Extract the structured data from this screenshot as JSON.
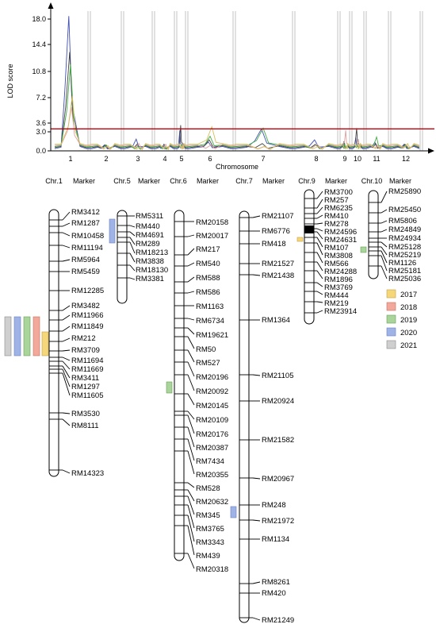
{
  "lod_plot": {
    "ylabel": "LOD score",
    "xlabel": "Chromosome",
    "y_ticks": [
      "0.0",
      "3.0",
      "3.6",
      "7.2",
      "10.8",
      "14.4",
      "18.0"
    ],
    "x_ticks": [
      "1",
      "2",
      "3",
      "4",
      "5",
      "6",
      "7",
      "8",
      "9",
      "10",
      "11",
      "12"
    ]
  },
  "chart_data": {
    "type": "line",
    "title": "",
    "xlabel": "Chromosome",
    "ylabel": "LOD score",
    "ylim": [
      0,
      18.0
    ],
    "threshold": 3.0,
    "threshold_color": "#c0000b",
    "categories": [
      "1",
      "2",
      "3",
      "4",
      "5",
      "6",
      "7",
      "8",
      "9",
      "10",
      "11",
      "12"
    ],
    "series": [
      {
        "color": "#3f4fb4",
        "values": [
          18.4,
          0.8,
          1.6,
          0.7,
          2.8,
          1.2,
          3.0,
          1.5,
          1.0,
          1.8,
          1.2,
          0.9
        ]
      },
      {
        "color": "#444444",
        "values": [
          13.5,
          0.8,
          0.9,
          0.9,
          3.5,
          1.5,
          1.0,
          0.9,
          1.3,
          3.1,
          1.0,
          0.9
        ]
      },
      {
        "color": "#44aa44",
        "values": [
          11.8,
          0.8,
          0.6,
          0.6,
          0.9,
          2.0,
          3.1,
          0.8,
          0.9,
          1.0,
          1.9,
          0.8
        ]
      },
      {
        "color": "#e0a0a0",
        "values": [
          6.0,
          0.6,
          1.0,
          0.9,
          0.8,
          0.8,
          0.6,
          0.9,
          2.8,
          1.6,
          0.8,
          0.8
        ]
      },
      {
        "color": "#d4c060",
        "values": [
          7.5,
          0.7,
          0.5,
          0.6,
          0.7,
          3.3,
          0.6,
          0.6,
          0.7,
          0.8,
          0.7,
          1.0
        ]
      }
    ]
  },
  "legend": [
    {
      "label": "2017",
      "color": "#f5d77a"
    },
    {
      "label": "2018",
      "color": "#f2a89a"
    },
    {
      "label": "2019",
      "color": "#a9d49a"
    },
    {
      "label": "2020",
      "color": "#9fb3e6"
    },
    {
      "label": "2021",
      "color": "#cfcfcf"
    }
  ],
  "headers": {
    "chr1": "Chr.1",
    "chr5": "Chr.5",
    "chr6": "Chr.6",
    "chr7": "Chr.7",
    "chr9": "Chr.9",
    "chr10": "Chr.10",
    "marker": "Marker"
  },
  "chromosomes": {
    "chr1": [
      "RM3412",
      "RM1287",
      "RM10458",
      "RM11194",
      "RM5964",
      "RM5459",
      "RM12285",
      "RM3482",
      "RM11966",
      "RM11849",
      "RM212",
      "RM3709",
      "RM11694",
      "RM11669",
      "RM3411",
      "RM1297",
      "RM11605",
      "RM3530",
      "RM8111",
      "RM14323"
    ],
    "chr5": [
      "RM5311",
      "RM440",
      "RM4691",
      "RM289",
      "RM18213",
      "RM3838",
      "RM18130",
      "RM3381"
    ],
    "chr6": [
      "RM20158",
      "RM20017",
      "RM217",
      "RM540",
      "RM588",
      "RM586",
      "RM1163",
      "RM6734",
      "RM19621",
      "RM50",
      "RM527",
      "RM20196",
      "RM20092",
      "RM20145",
      "RM20109",
      "RM20176",
      "RM20387",
      "RM7434",
      "RM20355",
      "RM528",
      "RM20632",
      "RM345",
      "RM3765",
      "RM3343",
      "RM439",
      "RM20318"
    ],
    "chr7": [
      "RM21107",
      "RM6776",
      "RM418",
      "RM21527",
      "RM21438",
      "RM1364",
      "RM21105",
      "RM20924",
      "RM21582",
      "RM20967",
      "RM248",
      "RM21972",
      "RM1134",
      "RM8261",
      "RM420",
      "RM21249"
    ],
    "chr9": [
      "RM3700",
      "RM257",
      "RM6235",
      "RM410",
      "RM278",
      "RM24596",
      "RM24631",
      "RM107",
      "RM3808",
      "RM566",
      "RM24288",
      "RM1896",
      "RM3769",
      "RM444",
      "RM219",
      "RM23914"
    ],
    "chr10": [
      "RM25890",
      "RM25450",
      "RM5806",
      "RM24849",
      "RM24934",
      "RM25128",
      "RM25219",
      "RM1126",
      "RM25181",
      "RM25036"
    ]
  }
}
